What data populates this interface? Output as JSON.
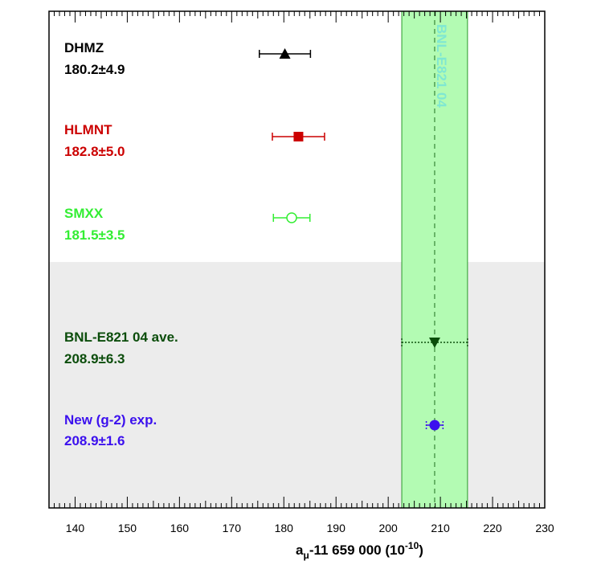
{
  "chart_data": {
    "type": "scatter",
    "xlabel_main": "a",
    "xlabel_sub": "μ",
    "xlabel_rest": "-11 659 000 (10",
    "xlabel_exp": "-10",
    "xlabel_close": ")",
    "xlim": [
      135,
      230
    ],
    "xticks": [
      "140",
      "150",
      "160",
      "170",
      "180",
      "190",
      "200",
      "210",
      "220",
      "230"
    ],
    "band": {
      "label": "BNL-E821 04",
      "center": 208.9,
      "low": 202.6,
      "high": 215.2,
      "color": "#b3fbb3",
      "label_color": "#7fe7d2"
    },
    "entries": [
      {
        "name": "DHMZ",
        "value": 180.2,
        "error": 4.9,
        "value_text": "180.2±4.9",
        "color": "#000000",
        "marker": "triangle-up"
      },
      {
        "name": "HLMNT",
        "value": 182.8,
        "error": 5.0,
        "value_text": "182.8±5.0",
        "color": "#cc0000",
        "marker": "square"
      },
      {
        "name": "SMXX",
        "value": 181.5,
        "error": 3.5,
        "value_text": "181.5±3.5",
        "color": "#33ee33",
        "marker": "open-circle"
      },
      {
        "name": "BNL-E821 04 ave.",
        "value": 208.9,
        "error": 6.3,
        "value_text": "208.9±6.3",
        "color": "#0b4d0b",
        "marker": "triangle-down"
      },
      {
        "name": "New (g-2) exp.",
        "value": 208.9,
        "error": 1.6,
        "value_text": "208.9±1.6",
        "color": "#3b10ee",
        "marker": "circle"
      }
    ],
    "shaded_region_color": "#ececec"
  }
}
